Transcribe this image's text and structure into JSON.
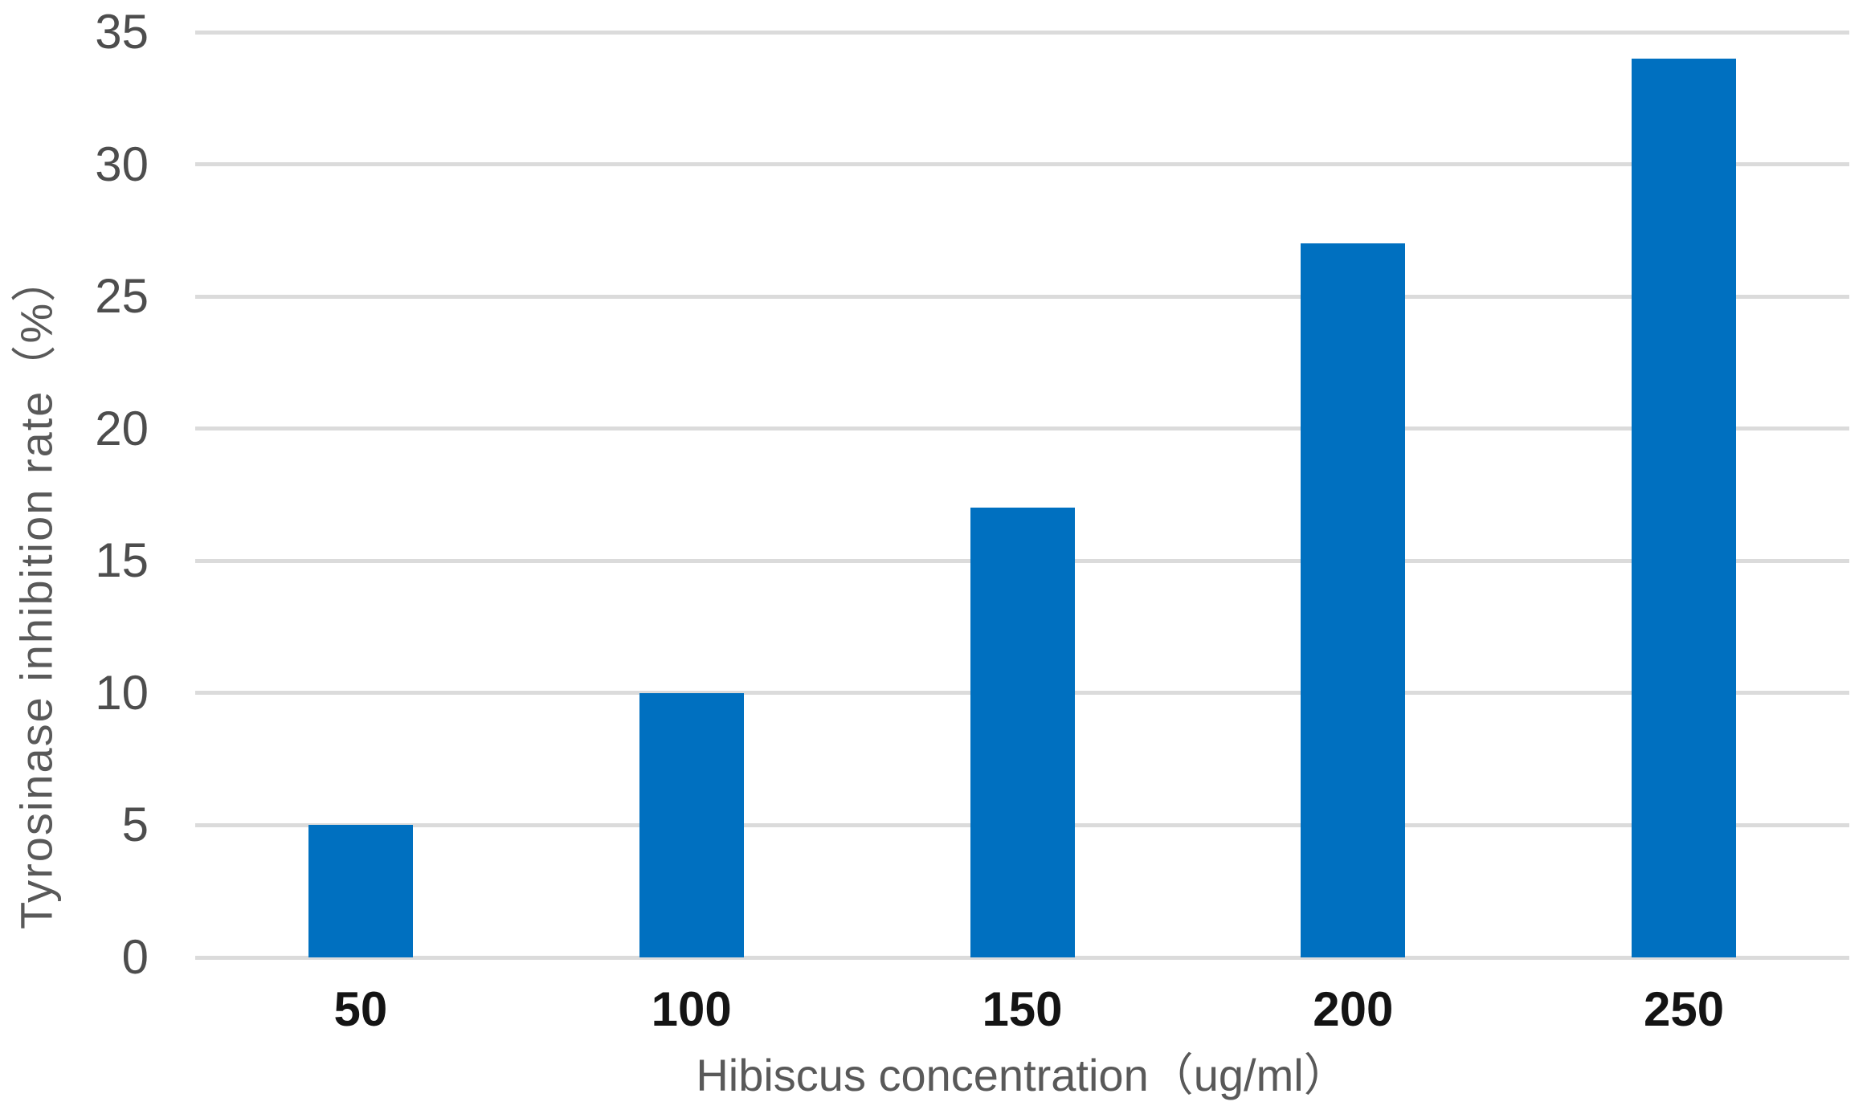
{
  "chart_data": {
    "type": "bar",
    "title": "",
    "xlabel": "Hibiscus concentration（ug/ml）",
    "ylabel": "Tyrosinase inhibition rate（%）",
    "categories": [
      "50",
      "100",
      "150",
      "200",
      "250"
    ],
    "values": [
      5,
      10,
      17,
      27,
      34
    ],
    "ylim": [
      0,
      35
    ],
    "yticks": [
      0,
      5,
      10,
      15,
      20,
      25,
      30,
      35
    ],
    "grid": true,
    "legend_position": "none",
    "colors": {
      "bar": "#0070C0",
      "gridline": "#DBDBDB",
      "y_tick_text": "#4D4D4D",
      "x_tick_text": "#141414",
      "axis_title_text": "#595959",
      "background": "#FFFFFF"
    }
  }
}
